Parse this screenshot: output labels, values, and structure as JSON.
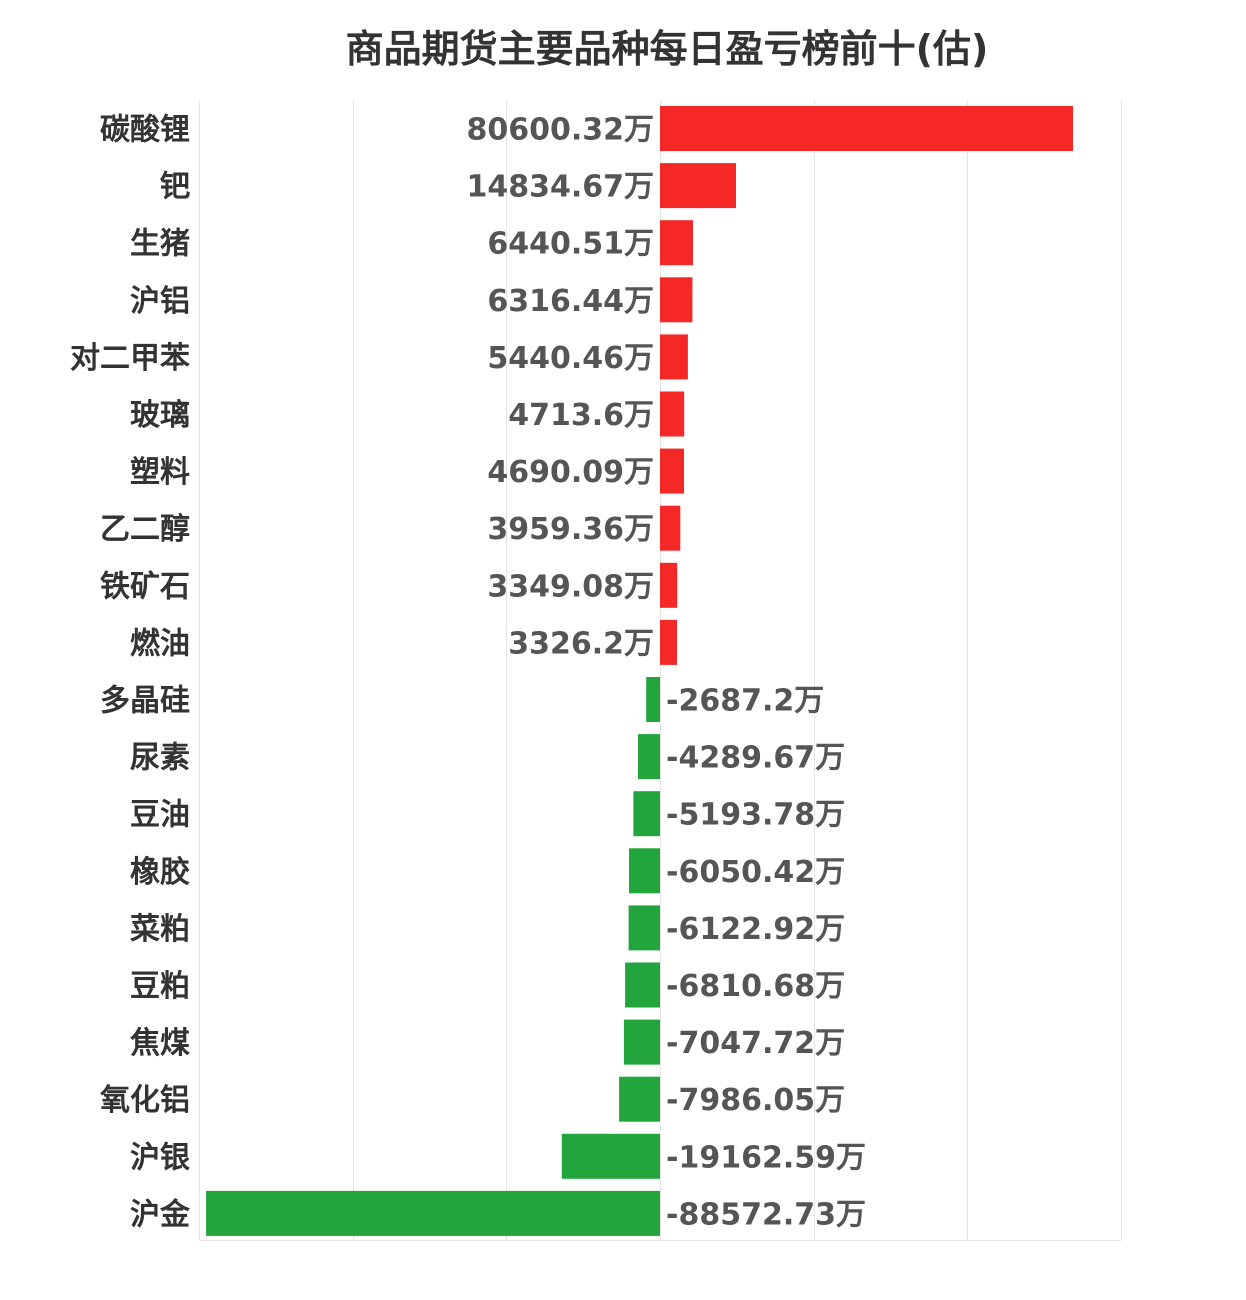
{
  "chart_data": {
    "type": "bar",
    "orientation": "horizontal",
    "title": "商品期货主要品种每日盈亏榜前十(估)",
    "value_suffix": "万",
    "xlim": [
      -90000,
      60000
    ],
    "grid": true,
    "categories": [
      "碳酸锂",
      "钯",
      "生猪",
      "沪铝",
      "对二甲苯",
      "玻璃",
      "塑料",
      "乙二醇",
      "铁矿石",
      "燃油",
      "多晶硅",
      "尿素",
      "豆油",
      "橡胶",
      "菜粕",
      "豆粕",
      "焦煤",
      "氧化铝",
      "沪银",
      "沪金"
    ],
    "values": [
      80600.32,
      14834.67,
      6440.51,
      6316.44,
      5440.46,
      4713.6,
      4690.09,
      3959.36,
      3349.08,
      3326.2,
      -2687.2,
      -4289.67,
      -5193.78,
      -6050.42,
      -6122.92,
      -6810.68,
      -7047.72,
      -7986.05,
      -19162.59,
      -88572.73
    ],
    "value_labels": [
      "80600.32万",
      "14834.67万",
      "6440.51万",
      "6316.44万",
      "5440.46万",
      "4713.6万",
      "4690.09万",
      "3959.36万",
      "3349.08万",
      "3326.2万",
      "-2687.2万",
      "-4289.67万",
      "-5193.78万",
      "-6050.42万",
      "-6122.92万",
      "-6810.68万",
      "-7047.72万",
      "-7986.05万",
      "-19162.59万",
      "-88572.73万"
    ],
    "colors": {
      "positive": "#f52828",
      "negative": "#21a53c",
      "grid": "#e6e6e6"
    }
  }
}
